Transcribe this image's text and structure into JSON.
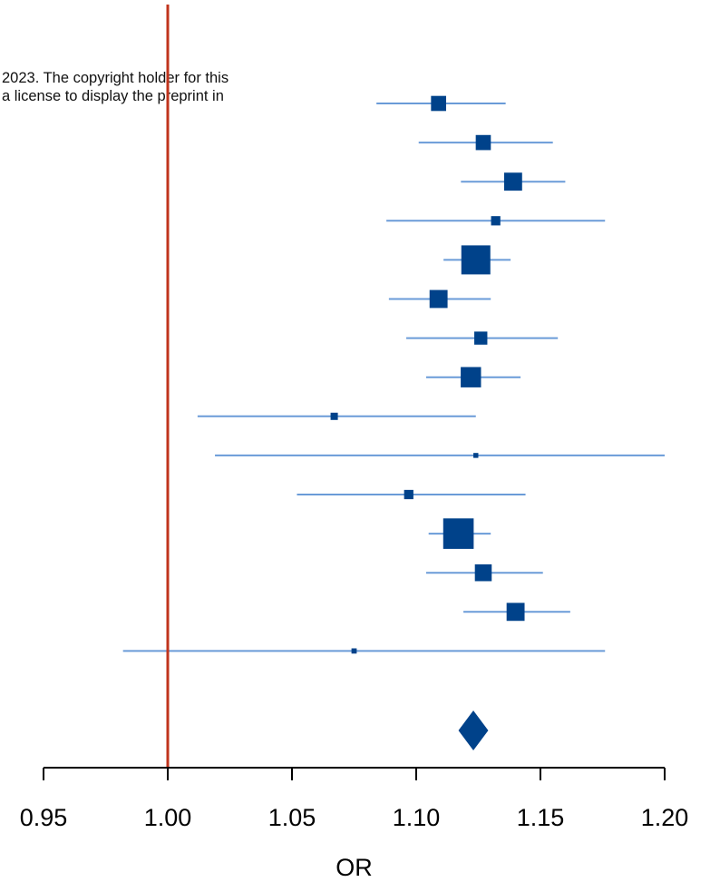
{
  "watermark": {
    "line1": "2023. The copyright holder for this",
    "line2": "a license to display the preprint in"
  },
  "colors": {
    "point": "#00428a",
    "ci_line": "#6a9bd8",
    "reference_line": "#c0341d",
    "axis": "#000000"
  },
  "chart_data": {
    "type": "forest",
    "xlabel": "OR",
    "xlim": [
      0.95,
      1.2
    ],
    "ticks": [
      0.95,
      1.0,
      1.05,
      1.1,
      1.15,
      1.2
    ],
    "tick_labels": [
      "0.95",
      "1.00",
      "1.05",
      "1.10",
      "1.15",
      "1.20"
    ],
    "reference_value": 1.0,
    "studies": [
      {
        "or": 1.109,
        "lower": 1.084,
        "upper": 1.136,
        "weight": 0.52
      },
      {
        "or": 1.127,
        "lower": 1.101,
        "upper": 1.155,
        "weight": 0.52
      },
      {
        "or": 1.139,
        "lower": 1.118,
        "upper": 1.16,
        "weight": 0.62
      },
      {
        "or": 1.132,
        "lower": 1.088,
        "upper": 1.176,
        "weight": 0.32
      },
      {
        "or": 1.124,
        "lower": 1.111,
        "upper": 1.138,
        "weight": 1.0
      },
      {
        "or": 1.109,
        "lower": 1.089,
        "upper": 1.13,
        "weight": 0.62
      },
      {
        "or": 1.126,
        "lower": 1.096,
        "upper": 1.157,
        "weight": 0.45
      },
      {
        "or": 1.122,
        "lower": 1.104,
        "upper": 1.142,
        "weight": 0.7
      },
      {
        "or": 1.067,
        "lower": 1.012,
        "upper": 1.124,
        "weight": 0.25
      },
      {
        "or": 1.124,
        "lower": 1.019,
        "upper": 1.2,
        "weight": 0.17
      },
      {
        "or": 1.097,
        "lower": 1.052,
        "upper": 1.144,
        "weight": 0.32
      },
      {
        "or": 1.117,
        "lower": 1.105,
        "upper": 1.13,
        "weight": 1.05
      },
      {
        "or": 1.127,
        "lower": 1.104,
        "upper": 1.151,
        "weight": 0.58
      },
      {
        "or": 1.14,
        "lower": 1.119,
        "upper": 1.162,
        "weight": 0.62
      },
      {
        "or": 1.075,
        "lower": 0.982,
        "upper": 1.176,
        "weight": 0.18
      }
    ],
    "pooled": {
      "or": 1.123,
      "lower": 1.117,
      "upper": 1.129
    }
  }
}
